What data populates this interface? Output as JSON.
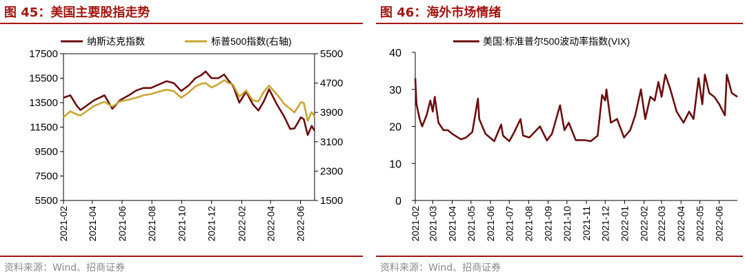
{
  "left": {
    "title": "图 45：美国主要股指走势",
    "source": "资料来源：Wind、招商证券",
    "colors": {
      "nasdaq": "#6b0d0d",
      "sp500": "#c9a52f"
    },
    "chart_data": {
      "type": "line",
      "title": "美国主要股指走势",
      "legend_position": "top",
      "x_tick_labels": [
        "2021-02",
        "2021-04",
        "2021-06",
        "2021-08",
        "2021-10",
        "2021-12",
        "2022-02",
        "2022-04",
        "2022-06"
      ],
      "y_left": {
        "label": "纳斯达克指数",
        "ylim": [
          5500,
          17500
        ],
        "ticks": [
          5500,
          7500,
          9500,
          11500,
          13500,
          15500,
          17500
        ]
      },
      "y_right": {
        "label": "标普500指数(右轴)",
        "ylim": [
          1500,
          5500
        ],
        "ticks": [
          1500,
          2300,
          3100,
          3900,
          4700,
          5500
        ]
      },
      "series": [
        {
          "name": "纳斯达克指数",
          "axis": "left",
          "color_key": "nasdaq",
          "x": [
            "2021-02-01",
            "2021-02-15",
            "2021-03-01",
            "2021-03-08",
            "2021-03-22",
            "2021-04-05",
            "2021-04-26",
            "2021-05-12",
            "2021-05-28",
            "2021-06-15",
            "2021-06-30",
            "2021-07-15",
            "2021-07-30",
            "2021-08-16",
            "2021-08-31",
            "2021-09-15",
            "2021-09-30",
            "2021-10-15",
            "2021-10-29",
            "2021-11-10",
            "2021-11-19",
            "2021-12-01",
            "2021-12-15",
            "2021-12-27",
            "2022-01-05",
            "2022-01-14",
            "2022-01-27",
            "2022-02-10",
            "2022-02-23",
            "2022-03-07",
            "2022-03-18",
            "2022-03-29",
            "2022-04-14",
            "2022-04-29",
            "2022-05-11",
            "2022-05-20",
            "2022-06-02",
            "2022-06-08",
            "2022-06-16",
            "2022-06-24",
            "2022-06-30"
          ],
          "values": [
            13900,
            14100,
            13200,
            12900,
            13300,
            13700,
            14100,
            13000,
            13700,
            14100,
            14500,
            14700,
            14700,
            15000,
            15250,
            15100,
            14450,
            14900,
            15500,
            15750,
            16050,
            15500,
            15500,
            15800,
            15300,
            14900,
            13500,
            14400,
            13400,
            12850,
            13600,
            14600,
            13350,
            12350,
            11350,
            11400,
            12300,
            12150,
            10850,
            11600,
            11200
          ]
        },
        {
          "name": "标普500指数(右轴)",
          "axis": "right",
          "color_key": "sp500",
          "x": [
            "2021-02-01",
            "2021-02-15",
            "2021-03-01",
            "2021-03-08",
            "2021-03-22",
            "2021-04-05",
            "2021-04-26",
            "2021-05-12",
            "2021-05-28",
            "2021-06-15",
            "2021-06-30",
            "2021-07-15",
            "2021-07-30",
            "2021-08-16",
            "2021-08-31",
            "2021-09-15",
            "2021-09-30",
            "2021-10-15",
            "2021-10-29",
            "2021-11-10",
            "2021-11-19",
            "2021-12-01",
            "2021-12-15",
            "2021-12-27",
            "2022-01-05",
            "2022-01-14",
            "2022-01-27",
            "2022-02-10",
            "2022-02-23",
            "2022-03-07",
            "2022-03-18",
            "2022-03-29",
            "2022-04-14",
            "2022-04-29",
            "2022-05-11",
            "2022-05-20",
            "2022-06-02",
            "2022-06-08",
            "2022-06-16",
            "2022-06-24",
            "2022-06-30"
          ],
          "values": [
            3770,
            3930,
            3840,
            3820,
            3950,
            4080,
            4190,
            4060,
            4200,
            4250,
            4300,
            4370,
            4400,
            4470,
            4520,
            4480,
            4300,
            4440,
            4610,
            4680,
            4700,
            4580,
            4670,
            4780,
            4700,
            4660,
            4330,
            4500,
            4230,
            4200,
            4460,
            4630,
            4390,
            4130,
            4000,
            3900,
            4180,
            4160,
            3670,
            3910,
            3790
          ]
        }
      ]
    }
  },
  "right": {
    "title": "图 46：海外市场情绪",
    "source": "资料来源：Wind、招商证券",
    "colors": {
      "vix": "#6b0d0d"
    },
    "chart_data": {
      "type": "line",
      "title": "海外市场情绪",
      "legend_position": "top",
      "x_tick_labels": [
        "2021-02",
        "2021-03",
        "2021-04",
        "2021-05",
        "2021-06",
        "2021-07",
        "2021-08",
        "2021-09",
        "2021-10",
        "2021-11",
        "2021-12",
        "2022-01",
        "2022-02",
        "2022-03",
        "2022-04",
        "2022-05",
        "2022-06"
      ],
      "ylim": [
        0,
        40
      ],
      "y_ticks": [
        0,
        10,
        20,
        30,
        40
      ],
      "series": [
        {
          "name": "美国:标准普尔500波动率指数(VIX)",
          "color_key": "vix",
          "x": [
            "2021-02-01",
            "2021-02-03",
            "2021-02-08",
            "2021-02-12",
            "2021-02-19",
            "2021-02-25",
            "2021-03-01",
            "2021-03-04",
            "2021-03-10",
            "2021-03-18",
            "2021-03-25",
            "2021-04-01",
            "2021-04-15",
            "2021-04-23",
            "2021-05-03",
            "2021-05-12",
            "2021-05-14",
            "2021-05-24",
            "2021-06-07",
            "2021-06-18",
            "2021-06-21",
            "2021-07-01",
            "2021-07-09",
            "2021-07-19",
            "2021-07-23",
            "2021-08-02",
            "2021-08-19",
            "2021-08-30",
            "2021-09-07",
            "2021-09-20",
            "2021-09-27",
            "2021-10-04",
            "2021-10-15",
            "2021-10-29",
            "2021-11-08",
            "2021-11-19",
            "2021-11-26",
            "2021-12-01",
            "2021-12-03",
            "2021-12-10",
            "2021-12-20",
            "2021-12-31",
            "2022-01-10",
            "2022-01-18",
            "2022-01-27",
            "2022-02-03",
            "2022-02-11",
            "2022-02-18",
            "2022-02-24",
            "2022-03-01",
            "2022-03-07",
            "2022-03-15",
            "2022-03-25",
            "2022-04-05",
            "2022-04-14",
            "2022-04-21",
            "2022-04-29",
            "2022-05-05",
            "2022-05-09",
            "2022-05-16",
            "2022-05-24",
            "2022-06-01",
            "2022-06-10",
            "2022-06-13",
            "2022-06-21",
            "2022-06-30"
          ],
          "values": [
            33,
            26,
            22,
            20,
            23,
            27,
            24,
            28,
            21,
            19,
            19,
            18,
            16.5,
            17,
            18.5,
            27.5,
            22,
            18,
            16,
            20.5,
            17.5,
            16,
            18.5,
            22,
            17.5,
            17,
            20,
            16.2,
            18,
            25.7,
            19,
            21,
            16.3,
            16.3,
            16,
            17.5,
            28.5,
            27,
            30,
            21,
            22,
            17,
            19,
            23,
            30,
            22,
            28,
            27,
            32,
            28,
            34,
            30,
            24,
            21,
            24,
            22,
            33,
            26,
            34,
            29,
            28,
            26,
            23,
            34,
            29,
            28
          ]
        }
      ]
    }
  }
}
